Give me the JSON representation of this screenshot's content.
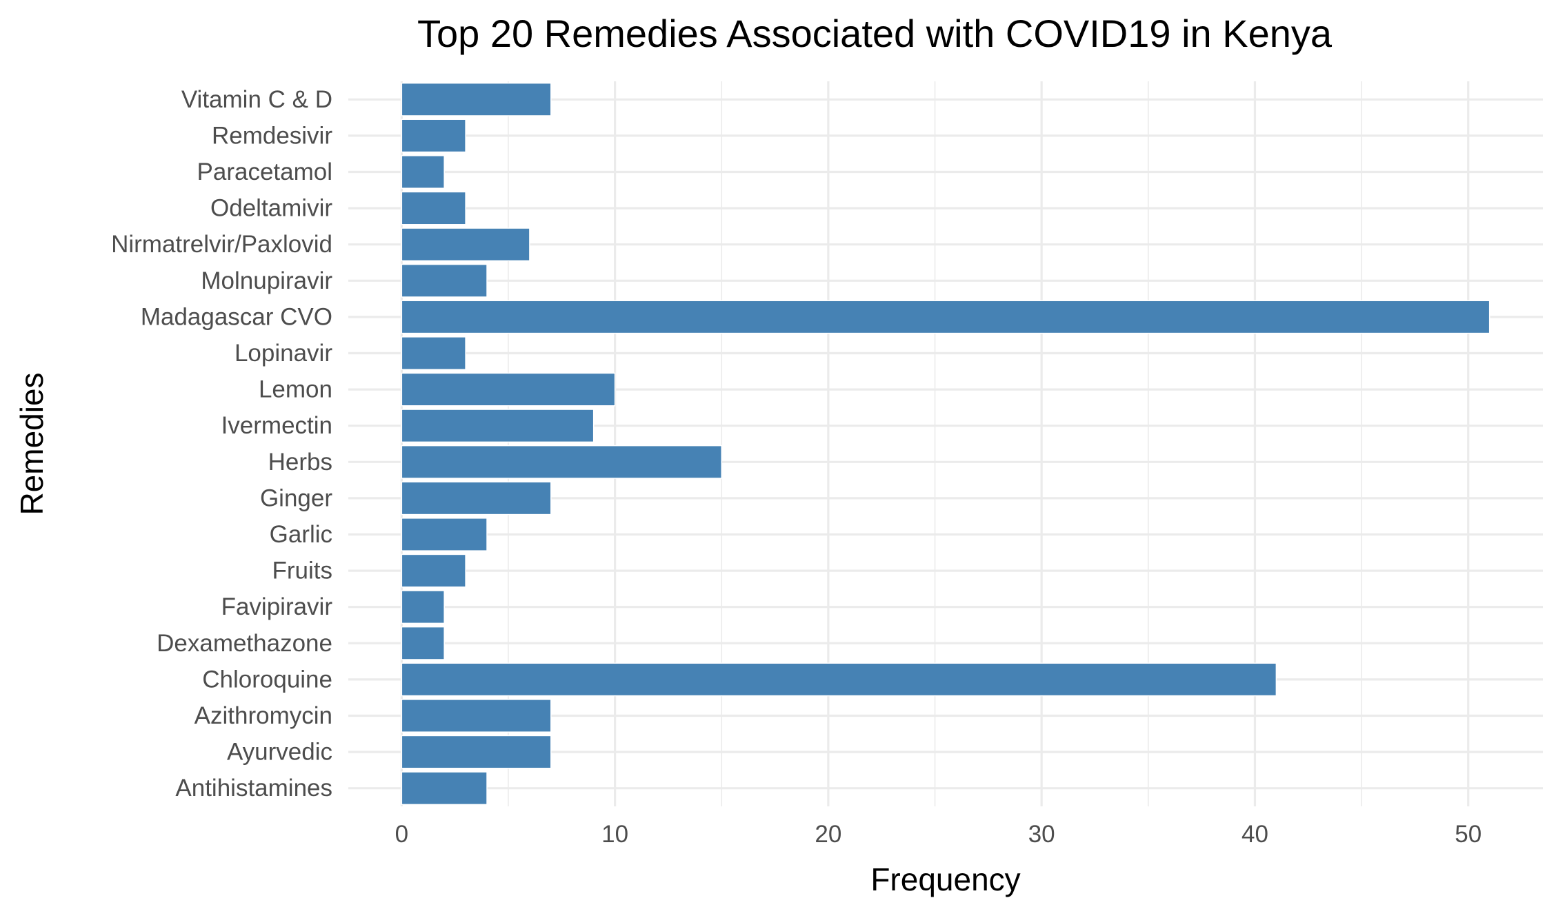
{
  "chart_data": {
    "type": "bar",
    "orientation": "horizontal",
    "title": "Top 20 Remedies Associated with COVID19 in Kenya",
    "xlabel": "Frequency",
    "ylabel": "Remedies",
    "categories": [
      "Antihistamines",
      "Ayurvedic",
      "Azithromycin",
      "Chloroquine",
      "Dexamethazone",
      "Favipiravir",
      "Fruits",
      "Garlic",
      "Ginger",
      "Herbs",
      "Ivermectin",
      "Lemon",
      "Lopinavir",
      "Madagascar CVO",
      "Molnupiravir",
      "Nirmatrelvir/Paxlovid",
      "Odeltamivir",
      "Paracetamol",
      "Remdesivir",
      "Vitamin C & D"
    ],
    "values": [
      4,
      7,
      7,
      41,
      2,
      2,
      3,
      4,
      7,
      15,
      9,
      10,
      3,
      51,
      4,
      6,
      3,
      2,
      3,
      7
    ],
    "xlim": [
      -2.5,
      53.5
    ],
    "x_ticks": [
      "0",
      "10",
      "20",
      "30",
      "40",
      "50"
    ],
    "grid": true,
    "bar_color": "#4682b4",
    "theme": "minimal"
  }
}
